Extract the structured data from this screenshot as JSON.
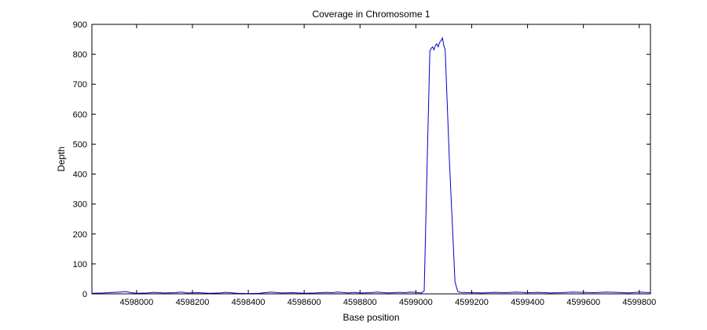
{
  "chart_data": {
    "type": "line",
    "title": "Coverage in Chromosome 1",
    "xlabel": "Base position",
    "ylabel": "Depth",
    "xlim": [
      4597840,
      4599840
    ],
    "ylim": [
      0,
      900
    ],
    "xticks": [
      4598000,
      4598200,
      4598400,
      4598600,
      4598800,
      4599000,
      4599200,
      4599400,
      4599600,
      4599800
    ],
    "yticks": [
      0,
      100,
      200,
      300,
      400,
      500,
      600,
      700,
      800,
      900
    ],
    "grid": false,
    "line_color": "#0000cc",
    "series": [
      {
        "x": [
          4597840,
          4597880,
          4597900,
          4597940,
          4597960,
          4597980,
          4598000,
          4598040,
          4598060,
          4598100,
          4598140,
          4598160,
          4598180,
          4598220,
          4598260,
          4598300,
          4598320,
          4598360,
          4598400,
          4598440,
          4598480,
          4598520,
          4598560,
          4598600,
          4598640,
          4598680,
          4598700,
          4598720,
          4598760,
          4598780,
          4598800,
          4598840,
          4598860,
          4598900,
          4598940,
          4598960,
          4598980,
          4599000,
          4599020,
          4599030,
          4599040,
          4599050,
          4599055,
          4599060,
          4599065,
          4599070,
          4599075,
          4599080,
          4599085,
          4599090,
          4599095,
          4599100,
          4599105,
          4599120,
          4599140,
          4599150,
          4599160,
          4599200,
          4599240,
          4599280,
          4599320,
          4599360,
          4599400,
          4599440,
          4599480,
          4599520,
          4599560,
          4599600,
          4599640,
          4599680,
          4599720,
          4599760,
          4599800,
          4599840
        ],
        "y": [
          2,
          3,
          4,
          6,
          8,
          4,
          2,
          3,
          5,
          3,
          4,
          6,
          3,
          4,
          2,
          3,
          5,
          2,
          1,
          2,
          6,
          3,
          4,
          2,
          3,
          5,
          4,
          6,
          3,
          5,
          3,
          4,
          6,
          3,
          5,
          4,
          6,
          5,
          3,
          10,
          420,
          810,
          820,
          825,
          815,
          830,
          835,
          825,
          840,
          845,
          855,
          830,
          815,
          450,
          40,
          8,
          5,
          4,
          3,
          5,
          4,
          6,
          4,
          5,
          3,
          4,
          6,
          5,
          4,
          6,
          5,
          3,
          6,
          4
        ]
      }
    ]
  }
}
